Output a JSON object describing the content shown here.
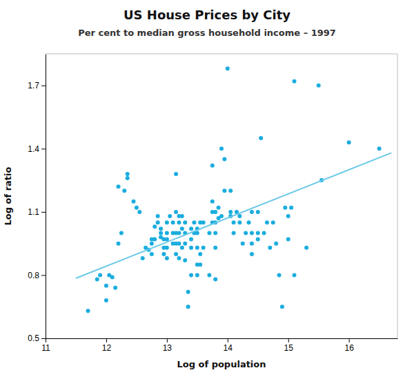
{
  "chart_data": {
    "type": "scatter",
    "title": "US House Prices by City",
    "subtitle": "Per cent to median gross household income – 1997",
    "xlabel": "Log of population",
    "ylabel": "Log of ratio",
    "xlim": [
      11,
      16.8
    ],
    "ylim": [
      0.5,
      1.85
    ],
    "xticks": [
      11,
      12,
      13,
      14,
      15,
      16
    ],
    "yticks": [
      0.5,
      0.8,
      1.1,
      1.4,
      1.7
    ],
    "grid": false,
    "series": [
      {
        "type": "scatter",
        "color": "#1aadde",
        "x": [
          11.7,
          11.85,
          11.9,
          12.0,
          12.0,
          12.05,
          12.1,
          12.15,
          12.2,
          12.25,
          12.2,
          12.3,
          12.35,
          12.35,
          12.45,
          12.5,
          12.55,
          12.6,
          12.65,
          12.7,
          12.75,
          12.75,
          12.75,
          12.8,
          12.8,
          12.85,
          12.85,
          12.9,
          12.9,
          12.9,
          12.95,
          12.95,
          12.95,
          13.0,
          13.0,
          13.0,
          13.0,
          13.0,
          13.05,
          13.1,
          13.1,
          13.1,
          13.15,
          13.15,
          13.15,
          13.15,
          13.15,
          13.2,
          13.2,
          13.2,
          13.2,
          13.2,
          13.25,
          13.25,
          13.25,
          13.3,
          13.3,
          13.3,
          13.3,
          13.35,
          13.35,
          13.4,
          13.4,
          13.4,
          13.4,
          13.45,
          13.45,
          13.5,
          13.5,
          13.5,
          13.5,
          13.5,
          13.55,
          13.55,
          13.55,
          13.6,
          13.6,
          13.7,
          13.7,
          13.75,
          13.75,
          13.75,
          13.75,
          13.8,
          13.8,
          13.8,
          13.8,
          13.8,
          13.85,
          13.85,
          13.9,
          13.9,
          13.95,
          13.95,
          14.0,
          14.05,
          14.05,
          14.05,
          14.1,
          14.1,
          14.15,
          14.2,
          14.2,
          14.25,
          14.3,
          14.35,
          14.4,
          14.4,
          14.4,
          14.4,
          14.5,
          14.5,
          14.5,
          14.55,
          14.6,
          14.65,
          14.7,
          14.75,
          14.8,
          14.85,
          14.9,
          14.95,
          15.0,
          15.0,
          15.05,
          15.1,
          15.1,
          15.3,
          15.5,
          15.55,
          16.0,
          16.5
        ],
        "values": [
          0.63,
          0.78,
          0.8,
          0.75,
          0.68,
          0.8,
          0.79,
          0.74,
          0.95,
          1.0,
          1.22,
          1.2,
          1.28,
          1.26,
          1.15,
          1.12,
          1.1,
          0.88,
          0.93,
          0.92,
          0.9,
          0.95,
          0.97,
          0.97,
          1.03,
          1.05,
          1.08,
          0.98,
          1.0,
          1.02,
          0.97,
          0.93,
          0.9,
          0.88,
          0.93,
          0.97,
          1.0,
          1.05,
          1.08,
          0.95,
          1.0,
          1.05,
          0.9,
          0.95,
          1.0,
          1.1,
          1.28,
          0.88,
          0.95,
          1.0,
          1.05,
          1.08,
          0.93,
          1.02,
          1.08,
          0.87,
          0.95,
          1.0,
          1.05,
          0.65,
          0.72,
          0.8,
          0.93,
          0.97,
          1.02,
          1.0,
          1.05,
          0.8,
          0.85,
          0.93,
          1.0,
          1.02,
          0.85,
          0.9,
          1.05,
          0.93,
          1.05,
          0.8,
          1.0,
          1.05,
          1.1,
          1.15,
          1.32,
          0.78,
          0.93,
          1.0,
          1.05,
          1.1,
          1.07,
          1.12,
          1.08,
          1.4,
          1.2,
          1.35,
          1.78,
          1.08,
          1.1,
          1.2,
          1.0,
          1.05,
          1.1,
          1.05,
          1.08,
          0.95,
          1.0,
          1.05,
          0.9,
          0.95,
          1.0,
          1.1,
          0.97,
          1.0,
          1.1,
          1.45,
          1.0,
          1.05,
          0.93,
          1.05,
          0.95,
          0.8,
          0.65,
          1.12,
          0.97,
          1.08,
          1.12,
          0.8,
          1.72,
          0.93,
          1.7,
          1.25,
          1.43,
          1.4
        ]
      },
      {
        "type": "line",
        "color": "#6dcae8",
        "x": [
          11.5,
          16.7
        ],
        "values": [
          0.785,
          1.38
        ]
      }
    ]
  }
}
